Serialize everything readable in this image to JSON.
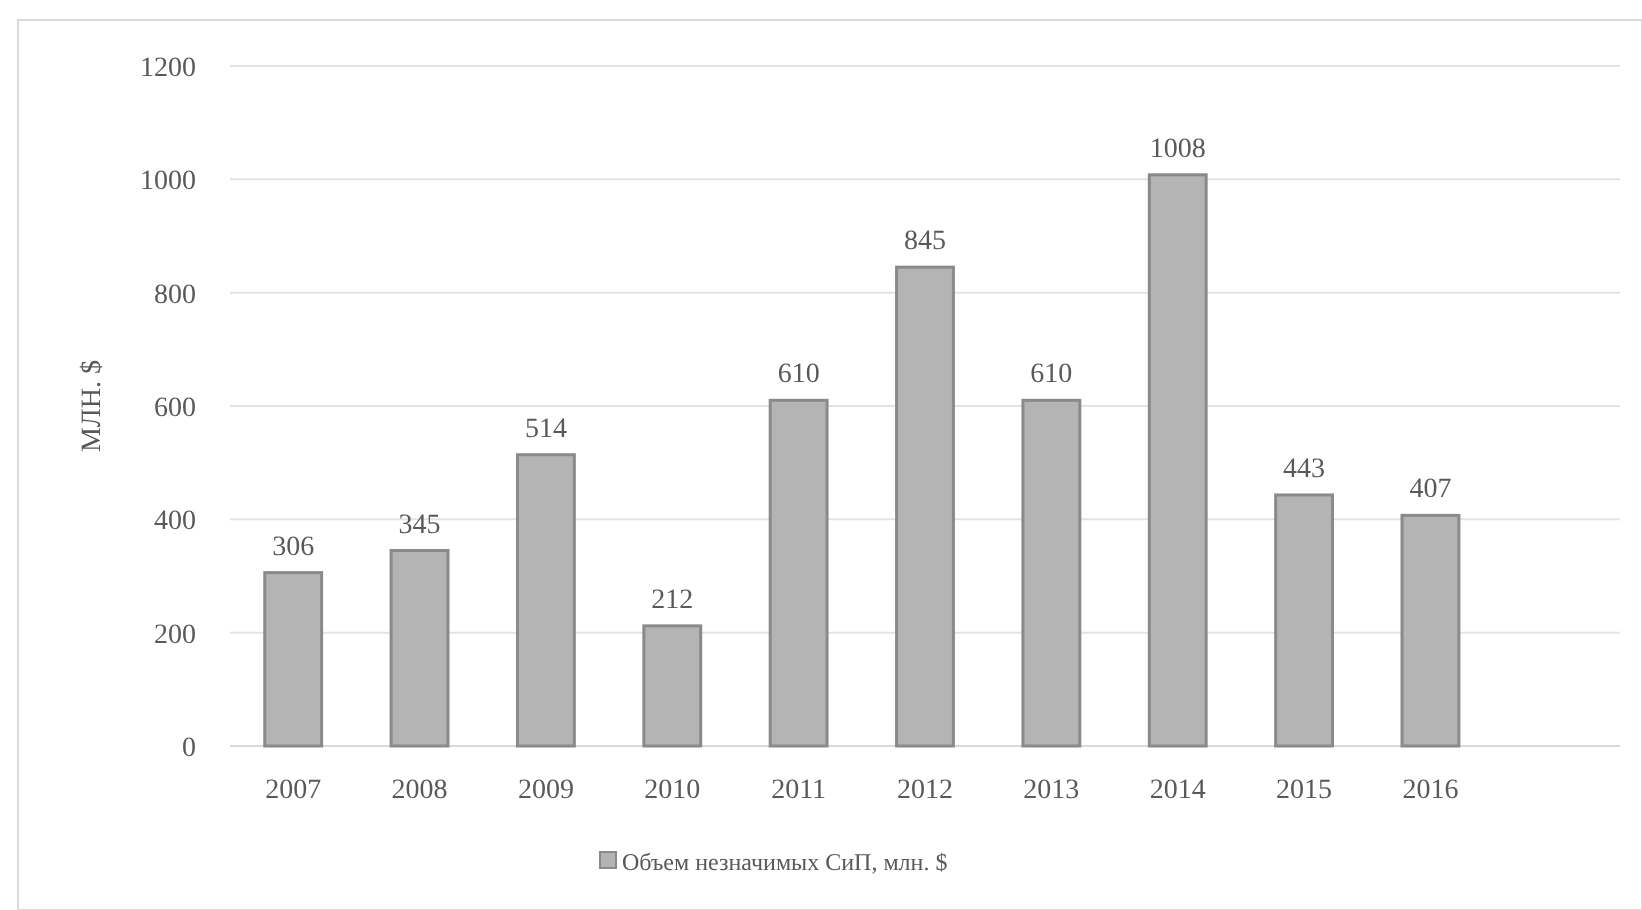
{
  "chart_data": {
    "type": "bar",
    "ylabel": "МЛН. $",
    "categories": [
      "2007",
      "2008",
      "2009",
      "2010",
      "2011",
      "2012",
      "2013",
      "2014",
      "2015",
      "2016"
    ],
    "series": [
      {
        "name": "Объем незначимых СиП, млн. $",
        "color": "#b4b4b4",
        "values": [
          306,
          345,
          514,
          212,
          610,
          845,
          610,
          1008,
          443,
          407
        ]
      }
    ],
    "ylim": [
      0,
      1200
    ],
    "yticks": [
      0,
      200,
      400,
      600,
      800,
      1000,
      1200
    ],
    "grid": "y",
    "legend": "bottom",
    "data_labels": true
  }
}
